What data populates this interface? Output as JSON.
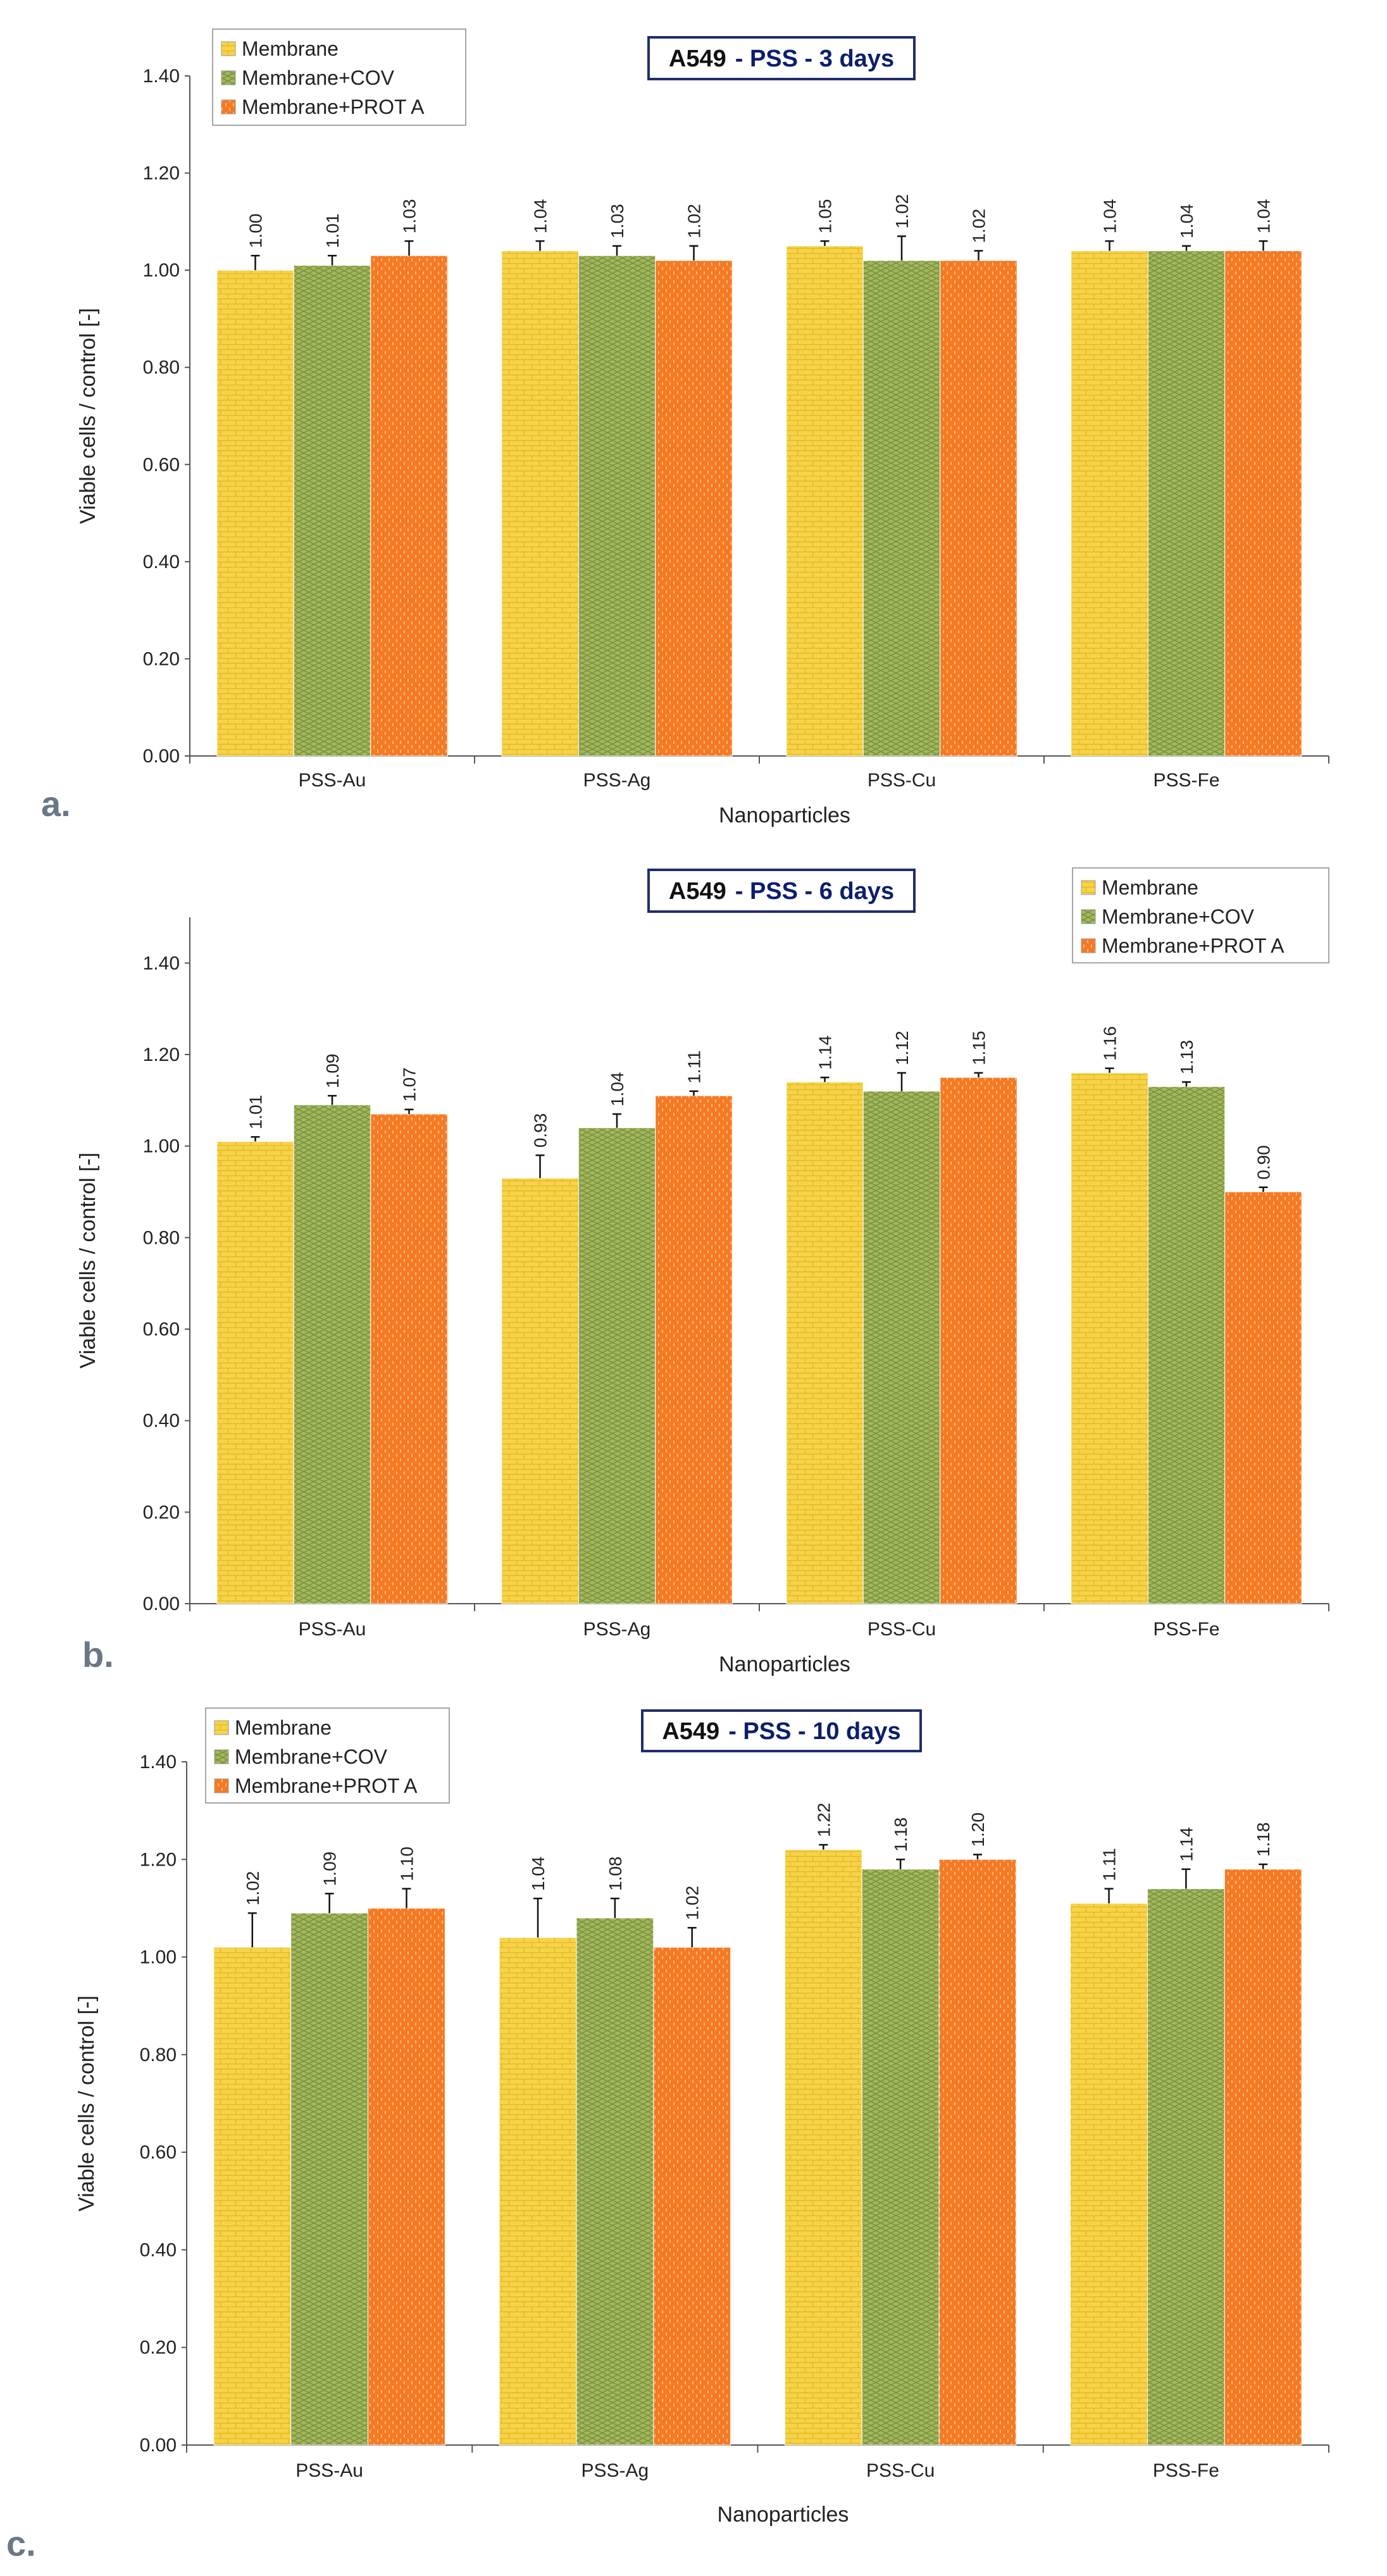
{
  "colors": {
    "membrane": "#f6d34a",
    "membrane_dark": "#e6b81e",
    "cov": "#a2b85c",
    "cov_dark": "#7d9240",
    "prot": "#f57a22",
    "prot_dark": "#d95c0c",
    "title_border": "#1f2d6e",
    "title_text": "#0b1f6b",
    "panel_label": "#6b7785"
  },
  "chart_data": [
    {
      "type": "bar",
      "panel_label": "a.",
      "title": "A549 - PSS - 3 days",
      "title_parts": [
        "A549",
        "- PSS - 3 days"
      ],
      "xlabel": "Nanoparticles",
      "ylabel": "Viable cells / control [-]",
      "ylim": [
        0,
        1.4
      ],
      "yticks": [
        "0.00",
        "0.20",
        "0.40",
        "0.60",
        "0.80",
        "1.00",
        "1.20",
        "1.40"
      ],
      "legend_position": "top-left",
      "categories": [
        "PSS-Au",
        "PSS-Ag",
        "PSS-Cu",
        "PSS-Fe"
      ],
      "series": [
        {
          "name": "Membrane",
          "values": [
            1.0,
            1.04,
            1.05,
            1.04
          ],
          "errors": [
            0.03,
            0.02,
            0.01,
            0.02
          ]
        },
        {
          "name": "Membrane+COV",
          "values": [
            1.01,
            1.03,
            1.02,
            1.04
          ],
          "errors": [
            0.02,
            0.02,
            0.05,
            0.01
          ]
        },
        {
          "name": "Membrane+PROT A",
          "values": [
            1.03,
            1.02,
            1.02,
            1.04
          ],
          "errors": [
            0.03,
            0.03,
            0.02,
            0.02
          ]
        }
      ]
    },
    {
      "type": "bar",
      "panel_label": "b.",
      "title": "A549 - PSS - 6 days",
      "title_parts": [
        "A549",
        "- PSS - 6 days"
      ],
      "xlabel": "Nanoparticles",
      "ylabel": "Viable cells / control [-]",
      "ylim": [
        0,
        1.5
      ],
      "yticks": [
        "0.00",
        "0.20",
        "0.40",
        "0.60",
        "0.80",
        "1.00",
        "1.20",
        "1.40"
      ],
      "legend_position": "top-right",
      "categories": [
        "PSS-Au",
        "PSS-Ag",
        "PSS-Cu",
        "PSS-Fe"
      ],
      "series": [
        {
          "name": "Membrane",
          "values": [
            1.01,
            0.93,
            1.14,
            1.16
          ],
          "errors": [
            0.01,
            0.05,
            0.01,
            0.01
          ]
        },
        {
          "name": "Membrane+COV",
          "values": [
            1.09,
            1.04,
            1.12,
            1.13
          ],
          "errors": [
            0.02,
            0.03,
            0.04,
            0.01
          ]
        },
        {
          "name": "Membrane+PROT A",
          "values": [
            1.07,
            1.11,
            1.15,
            0.9
          ],
          "errors": [
            0.01,
            0.01,
            0.01,
            0.01
          ]
        }
      ]
    },
    {
      "type": "bar",
      "panel_label": "c.",
      "title": "A549 - PSS - 10 days",
      "title_parts": [
        "A549",
        "- PSS - 10 days"
      ],
      "xlabel": "Nanoparticles",
      "ylabel": "Viable cells / control [-]",
      "ylim": [
        0,
        1.4
      ],
      "yticks": [
        "0.00",
        "0.20",
        "0.40",
        "0.60",
        "0.80",
        "1.00",
        "1.20",
        "1.40"
      ],
      "legend_position": "top-left",
      "categories": [
        "PSS-Au",
        "PSS-Ag",
        "PSS-Cu",
        "PSS-Fe"
      ],
      "series": [
        {
          "name": "Membrane",
          "values": [
            1.02,
            1.04,
            1.22,
            1.11
          ],
          "errors": [
            0.07,
            0.08,
            0.01,
            0.03
          ]
        },
        {
          "name": "Membrane+COV",
          "values": [
            1.09,
            1.08,
            1.18,
            1.14
          ],
          "errors": [
            0.04,
            0.04,
            0.02,
            0.04
          ]
        },
        {
          "name": "Membrane+PROT A",
          "values": [
            1.1,
            1.02,
            1.2,
            1.18
          ],
          "errors": [
            0.04,
            0.04,
            0.01,
            0.01
          ]
        }
      ]
    }
  ]
}
